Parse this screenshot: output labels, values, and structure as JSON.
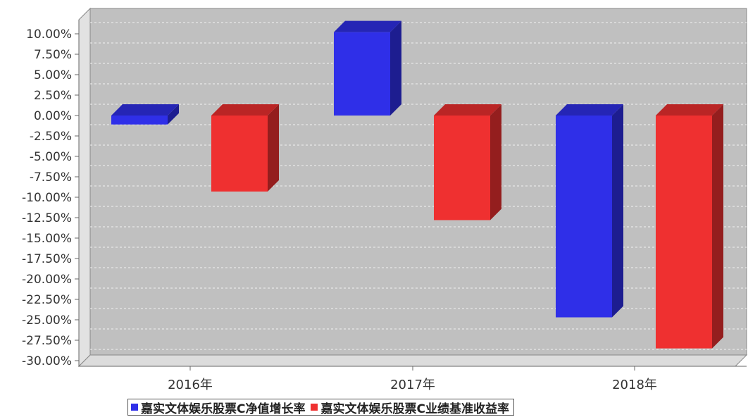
{
  "chart_data": {
    "type": "bar",
    "categories": [
      "2016年",
      "2017年",
      "2018年"
    ],
    "series": [
      {
        "name": "嘉实文体娱乐股票C净值增长率",
        "color": "#2f2fe8",
        "values": [
          -1.1,
          10.2,
          -24.7
        ]
      },
      {
        "name": "嘉实文体娱乐股票C业绩基准收益率",
        "color": "#ef3030",
        "values": [
          -9.3,
          -12.8,
          -28.5
        ]
      }
    ],
    "ylim": [
      -30,
      10
    ],
    "yticks": [
      10,
      7.5,
      5,
      2.5,
      0,
      -2.5,
      -5,
      -7.5,
      -10,
      -12.5,
      -15,
      -17.5,
      -20,
      -22.5,
      -25,
      -27.5,
      -30
    ],
    "ytick_labels": [
      "10.00%",
      "7.50%",
      "5.00%",
      "2.50%",
      "0.00%",
      "-2.50%",
      "-5.00%",
      "-7.50%",
      "-10.00%",
      "-12.50%",
      "-15.00%",
      "-17.50%",
      "-20.00%",
      "-22.50%",
      "-25.00%",
      "-27.50%",
      "-30.00%"
    ],
    "grid": true,
    "legend": "bottom-center",
    "style": "3d-bar",
    "background": "#c0c0c0"
  }
}
